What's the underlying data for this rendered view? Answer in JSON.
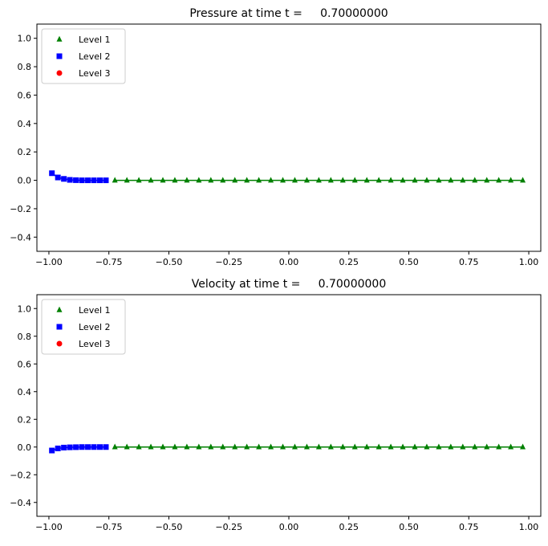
{
  "chart_data": [
    {
      "type": "scatter",
      "title": "Pressure at time t =     0.70000000",
      "xlim": [
        -1.05,
        1.05
      ],
      "ylim": [
        -0.5,
        1.1
      ],
      "xticks": [
        "−1.00",
        "−0.75",
        "−0.50",
        "−0.25",
        "0.00",
        "0.25",
        "0.50",
        "0.75",
        "1.00"
      ],
      "xtick_values": [
        -1.0,
        -0.75,
        -0.5,
        -0.25,
        0.0,
        0.25,
        0.5,
        0.75,
        1.0
      ],
      "yticks": [
        "−0.4",
        "−0.2",
        "0.0",
        "0.2",
        "0.4",
        "0.6",
        "0.8",
        "1.0"
      ],
      "ytick_values": [
        -0.4,
        -0.2,
        0.0,
        0.2,
        0.4,
        0.6,
        0.8,
        1.0
      ],
      "legend": "top-left",
      "series": [
        {
          "name": "Level 1",
          "marker": "triangle",
          "color": "#008000",
          "x": [
            -0.725,
            -0.675,
            -0.625,
            -0.575,
            -0.525,
            -0.475,
            -0.425,
            -0.375,
            -0.325,
            -0.275,
            -0.225,
            -0.175,
            -0.125,
            -0.075,
            -0.025,
            0.025,
            0.075,
            0.125,
            0.175,
            0.225,
            0.275,
            0.325,
            0.375,
            0.425,
            0.475,
            0.525,
            0.575,
            0.625,
            0.675,
            0.725,
            0.775,
            0.825,
            0.875,
            0.925,
            0.975
          ],
          "y": [
            0,
            0,
            0,
            0,
            0,
            0,
            0,
            0,
            0,
            0,
            0,
            0,
            0,
            0,
            0,
            0,
            0,
            0,
            0,
            0,
            0,
            0,
            0,
            0,
            0,
            0,
            0,
            0,
            0,
            0,
            0,
            0,
            0,
            0,
            0
          ]
        },
        {
          "name": "Level 2",
          "marker": "square",
          "color": "#0000ff",
          "x": [
            -0.9875,
            -0.9625,
            -0.9375,
            -0.9125,
            -0.8875,
            -0.8625,
            -0.8375,
            -0.8125,
            -0.7875,
            -0.7625
          ],
          "y": [
            0.05,
            0.02,
            0.01,
            0.003,
            0.001,
            0.0,
            0.0,
            0.0,
            0.0,
            0.0
          ]
        },
        {
          "name": "Level 3",
          "marker": "circle",
          "color": "#ff0000",
          "x": [],
          "y": []
        }
      ]
    },
    {
      "type": "scatter",
      "title": "Velocity at time t =     0.70000000",
      "xlim": [
        -1.05,
        1.05
      ],
      "ylim": [
        -0.5,
        1.1
      ],
      "xticks": [
        "−1.00",
        "−0.75",
        "−0.50",
        "−0.25",
        "0.00",
        "0.25",
        "0.50",
        "0.75",
        "1.00"
      ],
      "xtick_values": [
        -1.0,
        -0.75,
        -0.5,
        -0.25,
        0.0,
        0.25,
        0.5,
        0.75,
        1.0
      ],
      "yticks": [
        "−0.4",
        "−0.2",
        "0.0",
        "0.2",
        "0.4",
        "0.6",
        "0.8",
        "1.0"
      ],
      "ytick_values": [
        -0.4,
        -0.2,
        0.0,
        0.2,
        0.4,
        0.6,
        0.8,
        1.0
      ],
      "legend": "top-left",
      "series": [
        {
          "name": "Level 1",
          "marker": "triangle",
          "color": "#008000",
          "x": [
            -0.725,
            -0.675,
            -0.625,
            -0.575,
            -0.525,
            -0.475,
            -0.425,
            -0.375,
            -0.325,
            -0.275,
            -0.225,
            -0.175,
            -0.125,
            -0.075,
            -0.025,
            0.025,
            0.075,
            0.125,
            0.175,
            0.225,
            0.275,
            0.325,
            0.375,
            0.425,
            0.475,
            0.525,
            0.575,
            0.625,
            0.675,
            0.725,
            0.775,
            0.825,
            0.875,
            0.925,
            0.975
          ],
          "y": [
            0,
            0,
            0,
            0,
            0,
            0,
            0,
            0,
            0,
            0,
            0,
            0,
            0,
            0,
            0,
            0,
            0,
            0,
            0,
            0,
            0,
            0,
            0,
            0,
            0,
            0,
            0,
            0,
            0,
            0,
            0,
            0,
            0,
            0,
            0
          ]
        },
        {
          "name": "Level 2",
          "marker": "square",
          "color": "#0000ff",
          "x": [
            -0.9875,
            -0.9625,
            -0.9375,
            -0.9125,
            -0.8875,
            -0.8625,
            -0.8375,
            -0.8125,
            -0.7875,
            -0.7625
          ],
          "y": [
            -0.025,
            -0.01,
            -0.004,
            -0.002,
            -0.001,
            0.0,
            0.0,
            0.0,
            0.0,
            0.0
          ]
        },
        {
          "name": "Level 3",
          "marker": "circle",
          "color": "#ff0000",
          "x": [],
          "y": []
        }
      ]
    }
  ]
}
